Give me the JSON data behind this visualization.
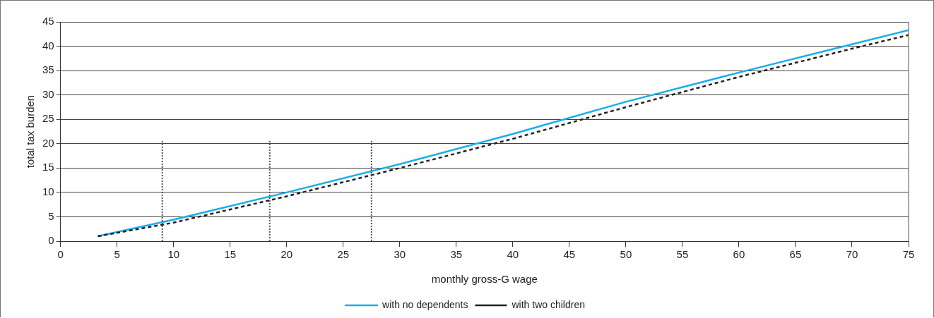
{
  "chart_data": {
    "type": "line",
    "xlabel": "monthly gross-G wage",
    "ylabel": "total tax burden",
    "xlim": [
      0,
      75
    ],
    "xticks": [
      0,
      5,
      10,
      15,
      20,
      25,
      30,
      35,
      40,
      45,
      50,
      55,
      60,
      65,
      70,
      75
    ],
    "ylim": [
      0,
      45
    ],
    "yticks": [
      0,
      5,
      10,
      15,
      20,
      25,
      30,
      35,
      40,
      45
    ],
    "grid": "y",
    "legend": "bottom",
    "marker": "none",
    "series": [
      {
        "name": "with no dependents",
        "color": "#1aaee8",
        "line_style": "solid",
        "x": [
          3.3,
          10,
          20,
          30,
          40,
          50,
          60,
          70,
          75
        ],
        "values": [
          1,
          4.4,
          10,
          15.8,
          22,
          28.6,
          34.6,
          40.4,
          43.3
        ]
      },
      {
        "name": "with two children",
        "color": "#222222",
        "line_style": "dashed",
        "x": [
          3.3,
          10,
          20,
          30,
          40,
          50,
          60,
          70,
          75
        ],
        "values": [
          1,
          3.8,
          9.2,
          15,
          21,
          27.5,
          33.7,
          39.5,
          42.3
        ]
      },
      {
        "color": "#555555",
        "line_style": "dotted",
        "x": [
          9,
          9
        ],
        "values": [
          0,
          20.6
        ]
      },
      {
        "color": "#555555",
        "line_style": "dotted",
        "x": [
          18.5,
          18.5
        ],
        "values": [
          0,
          20.6
        ]
      },
      {
        "color": "#555555",
        "line_style": "dotted",
        "x": [
          27.5,
          27.5
        ],
        "values": [
          0,
          20.6
        ]
      }
    ]
  }
}
